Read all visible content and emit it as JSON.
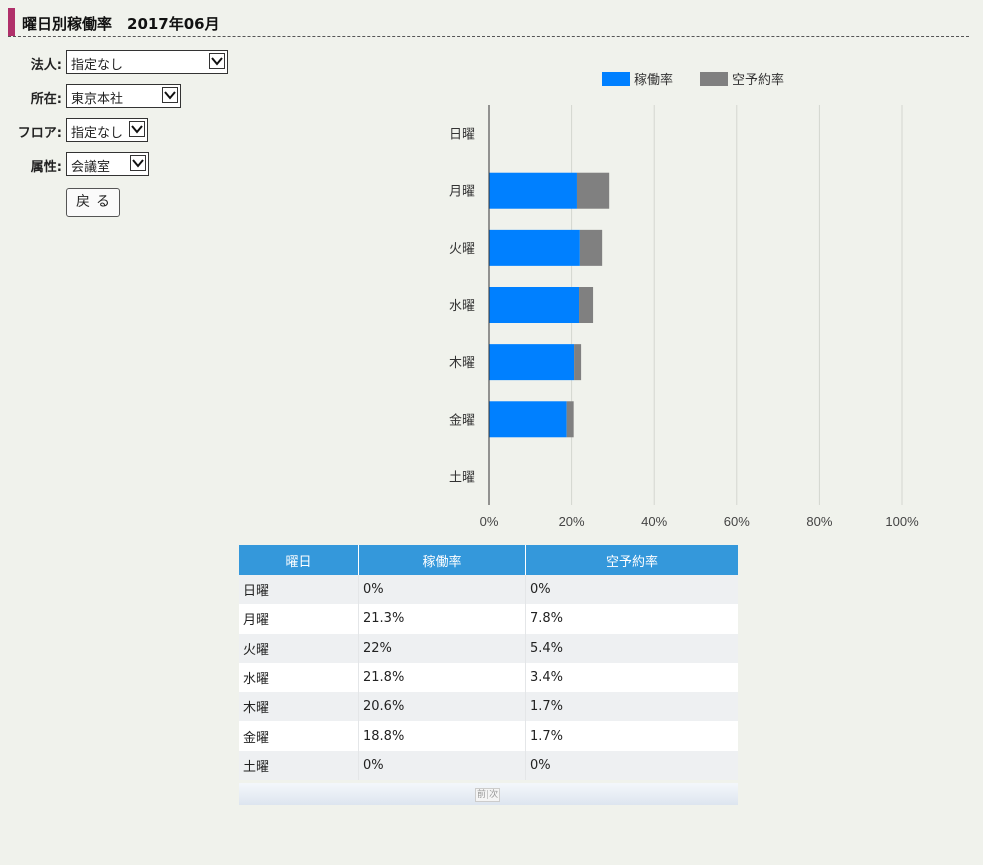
{
  "title": "曜日別稼働率　2017年06月",
  "filters": [
    {
      "label": "法人:",
      "value": "指定なし"
    },
    {
      "label": "所在:",
      "value": "東京本社"
    },
    {
      "label": "フロア:",
      "value": "指定なし"
    },
    {
      "label": "属性:",
      "value": "会議室"
    }
  ],
  "back_button": "戻る",
  "colors": {
    "usage": "#0080ff",
    "reserved_empty": "#808080",
    "header": "#3498db",
    "title_mark": "#b0306a"
  },
  "chart_data": {
    "type": "bar",
    "orientation": "horizontal",
    "stacked": true,
    "categories": [
      "日曜",
      "月曜",
      "火曜",
      "水曜",
      "木曜",
      "金曜",
      "土曜"
    ],
    "series": [
      {
        "name": "稼働率",
        "values": [
          0,
          21.3,
          22,
          21.8,
          20.6,
          18.8,
          0
        ],
        "color": "#0080ff"
      },
      {
        "name": "空予約率",
        "values": [
          0,
          7.8,
          5.4,
          3.4,
          1.7,
          1.7,
          0
        ],
        "color": "#808080"
      }
    ],
    "xlim": [
      0,
      100
    ],
    "x_ticks": [
      "0%",
      "20%",
      "40%",
      "60%",
      "80%",
      "100%"
    ],
    "grid": true,
    "legend": "top"
  },
  "table": {
    "headers": [
      "曜日",
      "稼働率",
      "空予約率"
    ],
    "rows": [
      [
        "日曜",
        "0%",
        "0%"
      ],
      [
        "月曜",
        "21.3%",
        "7.8%"
      ],
      [
        "火曜",
        "22%",
        "5.4%"
      ],
      [
        "水曜",
        "21.8%",
        "3.4%"
      ],
      [
        "木曜",
        "20.6%",
        "1.7%"
      ],
      [
        "金曜",
        "18.8%",
        "1.7%"
      ],
      [
        "土曜",
        "0%",
        "0%"
      ]
    ]
  },
  "pager": {
    "prev": "前",
    "next": "次"
  }
}
